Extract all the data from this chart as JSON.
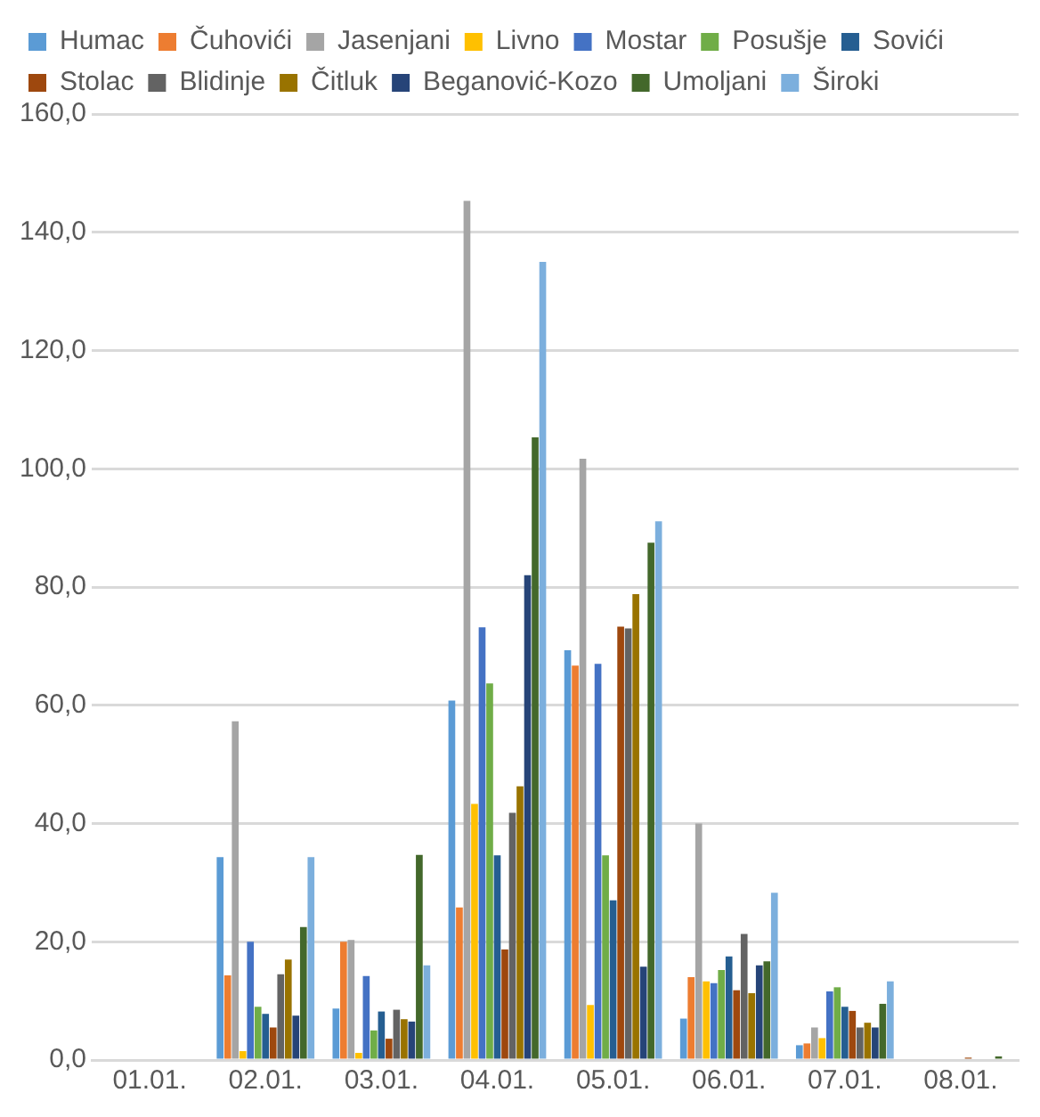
{
  "chart_data": {
    "type": "bar",
    "categories": [
      "01.01.",
      "02.01.",
      "03.01.",
      "04.01.",
      "05.01.",
      "06.01.",
      "07.01.",
      "08.01."
    ],
    "series": [
      {
        "name": "Humac",
        "color": "#5b9bd5",
        "values": [
          0,
          34.3,
          8.7,
          60.8,
          69.3,
          7,
          2.5,
          0
        ]
      },
      {
        "name": "Čuhovići",
        "color": "#ed7d31",
        "values": [
          0,
          14.3,
          20,
          25.8,
          66.7,
          14,
          2.8,
          0
        ]
      },
      {
        "name": "Jasenjani",
        "color": "#a5a5a5",
        "values": [
          0,
          57.3,
          20.3,
          145.3,
          101.7,
          40,
          5.5,
          0
        ]
      },
      {
        "name": "Livno",
        "color": "#ffc000",
        "values": [
          0,
          1.5,
          1.2,
          43.3,
          9.3,
          13.3,
          3.7,
          0
        ]
      },
      {
        "name": "Mostar",
        "color": "#4472c4",
        "values": [
          0,
          20,
          14.2,
          73.2,
          67,
          13,
          11.6,
          0
        ]
      },
      {
        "name": "Posušje",
        "color": "#70ad47",
        "values": [
          0,
          9,
          5,
          63.7,
          34.6,
          15.2,
          12.3,
          0
        ]
      },
      {
        "name": "Sovići",
        "color": "#255e91",
        "values": [
          0,
          7.8,
          8.2,
          34.6,
          27,
          17.5,
          9,
          0
        ]
      },
      {
        "name": "Stolac",
        "color": "#9e480e",
        "values": [
          0,
          5.5,
          3.6,
          18.7,
          73.3,
          11.8,
          8.3,
          0.4
        ]
      },
      {
        "name": "Blidinje",
        "color": "#636363",
        "values": [
          0,
          14.5,
          8.5,
          41.8,
          73,
          21.3,
          5.5,
          0
        ]
      },
      {
        "name": "Čitluk",
        "color": "#997300",
        "values": [
          0,
          17,
          6.9,
          46.3,
          78.8,
          11.3,
          6.3,
          0
        ]
      },
      {
        "name": "Beganović-Kozo",
        "color": "#264478",
        "values": [
          0,
          7.5,
          6.5,
          82,
          15.8,
          16,
          5.5,
          0
        ]
      },
      {
        "name": "Umoljani",
        "color": "#43682b",
        "values": [
          0,
          22.5,
          34.7,
          105.3,
          87.5,
          16.7,
          9.5,
          0.6
        ]
      },
      {
        "name": "Široki",
        "color": "#7cafdd",
        "values": [
          0,
          34.3,
          16,
          135,
          91.1,
          28.3,
          13.3,
          0
        ]
      }
    ],
    "ylim": [
      0,
      160
    ],
    "yticks": [
      {
        "value": 0,
        "label": "0,0"
      },
      {
        "value": 20,
        "label": "20,0"
      },
      {
        "value": 40,
        "label": "40,0"
      },
      {
        "value": 60,
        "label": "60,0"
      },
      {
        "value": 80,
        "label": "80,0"
      },
      {
        "value": 100,
        "label": "100,0"
      },
      {
        "value": 120,
        "label": "120,0"
      },
      {
        "value": 140,
        "label": "140,0"
      },
      {
        "value": 160,
        "label": "160,0"
      }
    ],
    "grid": "y",
    "legend": "top"
  }
}
